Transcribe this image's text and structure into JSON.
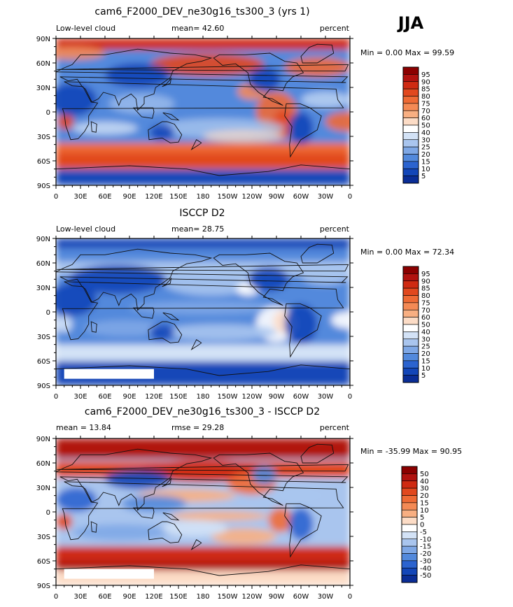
{
  "season": "JJA",
  "colors": {
    "frame": "#000000",
    "missing": "#ffffff",
    "land_outline": "#111111"
  },
  "chart_data": [
    {
      "type": "heatmap",
      "title": "cam6_F2000_DEV_ne30g16_ts300_3 (yrs 1)",
      "left_label": "Low-level cloud",
      "center_label": "mean=   42.60",
      "right_label": "percent",
      "minmax": "Min =     0.00 Max =   99.59",
      "xticks": [
        "0",
        "30E",
        "60E",
        "90E",
        "120E",
        "150E",
        "180",
        "150W",
        "120W",
        "90W",
        "60W",
        "30W",
        "0"
      ],
      "yticks": [
        "90N",
        "60N",
        "30N",
        "0",
        "30S",
        "60S",
        "90S"
      ],
      "colorbar": {
        "levels": [
          "95",
          "90",
          "85",
          "80",
          "75",
          "70",
          "60",
          "50",
          "40",
          "30",
          "25",
          "20",
          "15",
          "10",
          "5"
        ],
        "colors": [
          "#8b0000",
          "#b1120f",
          "#cf2a12",
          "#e1481e",
          "#ee6a35",
          "#f48a55",
          "#f8af82",
          "#fcdcc6",
          "#ffffff",
          "#d3e2f6",
          "#a9c5ee",
          "#7ea7e5",
          "#5289dc",
          "#2b63cf",
          "#1346b8",
          "#0a2d96"
        ]
      },
      "field_kind": "model"
    },
    {
      "type": "heatmap",
      "title": "ISCCP D2",
      "left_label": "Low-level cloud",
      "center_label": "mean=   28.75",
      "right_label": "percent",
      "minmax": "Min =     0.00 Max =   72.34",
      "xticks": [
        "0",
        "30E",
        "60E",
        "90E",
        "120E",
        "150E",
        "180",
        "150W",
        "120W",
        "90W",
        "60W",
        "30W",
        "0"
      ],
      "yticks": [
        "90N",
        "60N",
        "30N",
        "0",
        "30S",
        "60S",
        "90S"
      ],
      "colorbar": {
        "levels": [
          "95",
          "90",
          "85",
          "80",
          "75",
          "70",
          "60",
          "50",
          "40",
          "30",
          "25",
          "20",
          "15",
          "10",
          "5"
        ],
        "colors": [
          "#8b0000",
          "#b1120f",
          "#cf2a12",
          "#e1481e",
          "#ee6a35",
          "#f48a55",
          "#f8af82",
          "#fcdcc6",
          "#ffffff",
          "#d3e2f6",
          "#a9c5ee",
          "#7ea7e5",
          "#5289dc",
          "#2b63cf",
          "#1346b8",
          "#0a2d96"
        ]
      },
      "field_kind": "obs"
    },
    {
      "type": "heatmap",
      "title": "cam6_F2000_DEV_ne30g16_ts300_3 - ISCCP D2",
      "left_label": "mean =   13.84",
      "center_label": "rmse =   29.28",
      "right_label": "percent",
      "minmax": "Min = -35.99 Max =   90.95",
      "xticks": [
        "0",
        "30E",
        "60E",
        "90E",
        "120E",
        "150E",
        "180",
        "150W",
        "120W",
        "90W",
        "60W",
        "30W",
        "0"
      ],
      "yticks": [
        "90N",
        "60N",
        "30N",
        "0",
        "30S",
        "60S",
        "90S"
      ],
      "colorbar": {
        "levels": [
          "50",
          "40",
          "30",
          "20",
          "15",
          "10",
          "5",
          "0",
          "-5",
          "-10",
          "-15",
          "-20",
          "-30",
          "-40",
          "-50"
        ],
        "colors": [
          "#8b0000",
          "#b1120f",
          "#cf2a12",
          "#e1481e",
          "#ee6a35",
          "#f48a55",
          "#f8af82",
          "#fcdcc6",
          "#ffffff",
          "#d3e2f6",
          "#a9c5ee",
          "#7ea7e5",
          "#5289dc",
          "#2b63cf",
          "#1346b8",
          "#0a2d96"
        ]
      },
      "field_kind": "diff"
    }
  ]
}
